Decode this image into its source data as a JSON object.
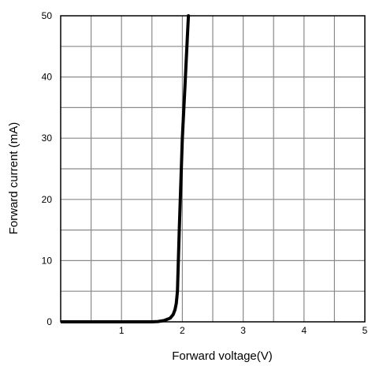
{
  "chart_data": {
    "type": "line",
    "title": "",
    "xlabel": "Forward voltage(V)",
    "ylabel": "Forward current (mA)",
    "xlim": [
      0,
      5
    ],
    "ylim": [
      0,
      50
    ],
    "x_grid_step": 0.5,
    "y_grid_step": 5,
    "grid": true,
    "x_ticks": [
      {
        "value": 1,
        "label": "1"
      },
      {
        "value": 2,
        "label": "2"
      },
      {
        "value": 3,
        "label": "3"
      },
      {
        "value": 4,
        "label": "4"
      },
      {
        "value": 5,
        "label": "5"
      }
    ],
    "y_ticks": [
      {
        "value": 0,
        "label": "0"
      },
      {
        "value": 10,
        "label": "10"
      },
      {
        "value": 20,
        "label": "20"
      },
      {
        "value": 30,
        "label": "30"
      },
      {
        "value": 40,
        "label": "40"
      },
      {
        "value": 50,
        "label": "50"
      }
    ],
    "series": [
      {
        "color": "#000000",
        "x": [
          0.0,
          1.0,
          1.5,
          1.6,
          1.7,
          1.8,
          1.85,
          1.88,
          1.9,
          1.92,
          1.95,
          2.0,
          2.05,
          2.1
        ],
        "y": [
          0.0,
          0.0,
          0.0,
          0.05,
          0.2,
          0.6,
          1.2,
          2.0,
          3.0,
          5.0,
          15.0,
          30.0,
          40.0,
          50.0
        ]
      }
    ],
    "colors": {
      "grid": "#8a8a8a",
      "frame": "#000000",
      "line": "#000000"
    }
  }
}
